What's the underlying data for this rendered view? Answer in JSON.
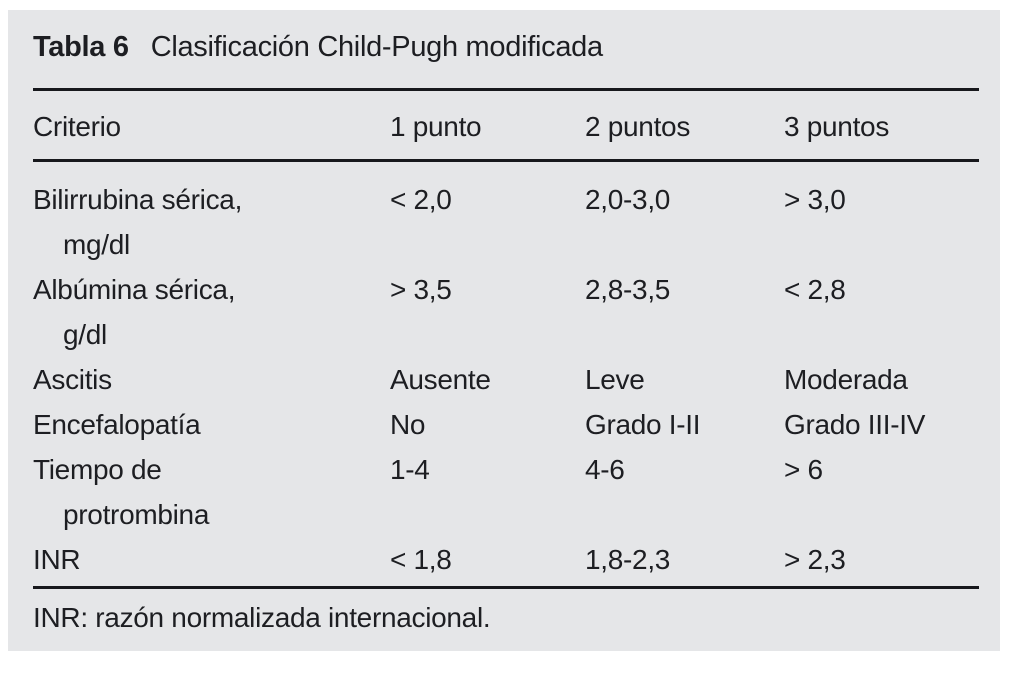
{
  "table": {
    "title_label": "Tabla 6",
    "title_text": "Clasificación Child-Pugh modificada",
    "columns": [
      "Criterio",
      "1 punto",
      "2 puntos",
      "3 puntos"
    ],
    "rows": [
      {
        "criterio": "Bilirrubina sérica,",
        "criterio_line2": "mg/dl",
        "p1": "< 2,0",
        "p2": "2,0-3,0",
        "p3": "> 3,0"
      },
      {
        "criterio": "Albúmina sérica,",
        "criterio_line2": "g/dl",
        "p1": "> 3,5",
        "p2": "2,8-3,5",
        "p3": "< 2,8"
      },
      {
        "criterio": "Ascitis",
        "p1": "Ausente",
        "p2": "Leve",
        "p3": "Moderada"
      },
      {
        "criterio": "Encefalopatía",
        "p1": "No",
        "p2": "Grado I-II",
        "p3": "Grado III-IV"
      },
      {
        "criterio": "Tiempo de",
        "criterio_line2": "protrombina",
        "p1": "1-4",
        "p2": "4-6",
        "p3": "> 6"
      },
      {
        "criterio": "INR",
        "p1": "< 1,8",
        "p2": "1,8-2,3",
        "p3": "> 2,3"
      }
    ],
    "footnote": "INR: razón normalizada internacional."
  },
  "colors": {
    "panel_bg": "#e5e6e8",
    "text": "#1d1e22",
    "rule": "#17181c"
  }
}
